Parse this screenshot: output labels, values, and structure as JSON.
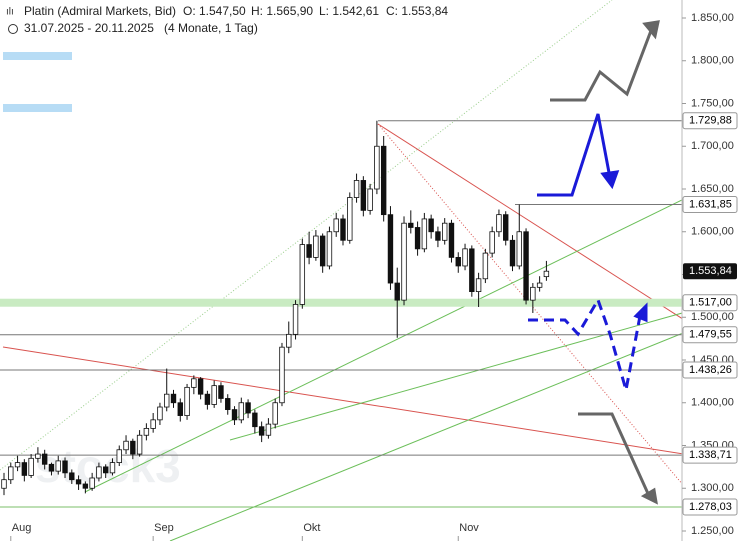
{
  "chart_data": {
    "type": "candlestick",
    "title": "Platin (Admiral Markets, Bid)",
    "header_values": [
      "O: 1.547,50",
      "H: 1.565,90",
      "L: 1.542,61",
      "C: 1.553,84"
    ],
    "period": "31.07.2025 - 20.11.2025",
    "period_note": "(4 Monate, 1 Tag)",
    "watermark": "stock3",
    "categories": [
      null,
      "Aug",
      null,
      null,
      null,
      null,
      null,
      null,
      null,
      null,
      null,
      null,
      null,
      null,
      null,
      null,
      null,
      null,
      null,
      null,
      null,
      null,
      "Sep",
      null,
      null,
      null,
      null,
      null,
      null,
      null,
      null,
      null,
      null,
      null,
      null,
      null,
      null,
      null,
      null,
      null,
      null,
      null,
      null,
      null,
      "Okt",
      null,
      null,
      null,
      null,
      null,
      null,
      null,
      null,
      null,
      null,
      null,
      null,
      null,
      null,
      null,
      null,
      null,
      null,
      null,
      null,
      null,
      null,
      "Nov",
      null,
      null,
      null,
      null,
      null,
      null,
      null,
      null,
      null,
      null,
      null,
      null,
      null
    ],
    "open": [
      1300,
      1310,
      1325,
      1330,
      1315,
      1335,
      1340,
      1328,
      1320,
      1332,
      1318,
      1310,
      1305,
      1300,
      1312,
      1325,
      1318,
      1330,
      1345,
      1355,
      1340,
      1362,
      1370,
      1380,
      1395,
      1410,
      1400,
      1385,
      1418,
      1428,
      1410,
      1398,
      1420,
      1405,
      1392,
      1380,
      1400,
      1388,
      1372,
      1362,
      1375,
      1400,
      1465,
      1480,
      1515,
      1585,
      1570,
      1595,
      1560,
      1600,
      1615,
      1590,
      1640,
      1660,
      1625,
      1650,
      1700,
      1620,
      1540,
      1520,
      1610,
      1605,
      1580,
      1615,
      1600,
      1590,
      1610,
      1570,
      1560,
      1580,
      1530,
      1545,
      1575,
      1600,
      1620,
      1590,
      1560,
      1600,
      1520,
      1535,
      1547.5
    ],
    "high": [
      1318,
      1330,
      1338,
      1334,
      1340,
      1348,
      1345,
      1330,
      1338,
      1336,
      1322,
      1315,
      1308,
      1318,
      1330,
      1328,
      1335,
      1350,
      1362,
      1358,
      1368,
      1376,
      1388,
      1400,
      1440,
      1415,
      1405,
      1422,
      1432,
      1430,
      1414,
      1426,
      1424,
      1410,
      1396,
      1406,
      1404,
      1392,
      1378,
      1382,
      1405,
      1470,
      1495,
      1520,
      1592,
      1600,
      1602,
      1598,
      1606,
      1622,
      1620,
      1646,
      1668,
      1665,
      1656,
      1729.88,
      1712,
      1630,
      1558,
      1618,
      1625,
      1612,
      1622,
      1620,
      1606,
      1616,
      1614,
      1576,
      1586,
      1584,
      1552,
      1580,
      1606,
      1626,
      1624,
      1596,
      1631.85,
      1604,
      1540,
      1548,
      1565.9
    ],
    "low": [
      1292,
      1305,
      1320,
      1308,
      1312,
      1330,
      1322,
      1315,
      1316,
      1312,
      1305,
      1298,
      1294,
      1297,
      1308,
      1312,
      1315,
      1326,
      1340,
      1334,
      1337,
      1356,
      1365,
      1374,
      1390,
      1394,
      1378,
      1380,
      1410,
      1404,
      1392,
      1394,
      1400,
      1386,
      1374,
      1376,
      1382,
      1364,
      1354,
      1358,
      1370,
      1396,
      1458,
      1474,
      1510,
      1562,
      1566,
      1552,
      1556,
      1594,
      1584,
      1586,
      1634,
      1618,
      1620,
      1644,
      1612,
      1532,
      1476,
      1514,
      1598,
      1572,
      1576,
      1592,
      1582,
      1585,
      1564,
      1552,
      1555,
      1524,
      1512,
      1540,
      1570,
      1594,
      1584,
      1554,
      1556,
      1515,
      1505,
      1530,
      1542.61
    ],
    "close": [
      1310,
      1325,
      1330,
      1315,
      1335,
      1340,
      1328,
      1320,
      1332,
      1318,
      1310,
      1305,
      1300,
      1312,
      1325,
      1318,
      1330,
      1345,
      1355,
      1340,
      1362,
      1370,
      1380,
      1395,
      1410,
      1400,
      1385,
      1418,
      1428,
      1410,
      1398,
      1420,
      1405,
      1392,
      1380,
      1400,
      1388,
      1372,
      1362,
      1375,
      1400,
      1465,
      1480,
      1515,
      1585,
      1570,
      1595,
      1560,
      1600,
      1615,
      1590,
      1640,
      1660,
      1625,
      1650,
      1700,
      1620,
      1540,
      1520,
      1610,
      1605,
      1580,
      1615,
      1600,
      1590,
      1610,
      1570,
      1560,
      1580,
      1530,
      1545,
      1575,
      1600,
      1620,
      1590,
      1560,
      1600,
      1520,
      1535,
      1540,
      1553.84
    ],
    "ylim": [
      1250,
      1850
    ],
    "yticks": [
      {
        "value": 1250,
        "label": "1.250,00"
      },
      {
        "value": 1300,
        "label": "1.300,00"
      },
      {
        "value": 1350,
        "label": "1.350,00"
      },
      {
        "value": 1400,
        "label": "1.400,00"
      },
      {
        "value": 1450,
        "label": "1.450,00"
      },
      {
        "value": 1500,
        "label": "1.500,00"
      },
      {
        "value": 1550,
        "label": "1.550,00"
      },
      {
        "value": 1600,
        "label": "1.600,00"
      },
      {
        "value": 1650,
        "label": "1.650,00"
      },
      {
        "value": 1700,
        "label": "1.700,00"
      },
      {
        "value": 1750,
        "label": "1.750,00"
      },
      {
        "value": 1800,
        "label": "1.800,00"
      },
      {
        "value": 1850,
        "label": "1.850,00"
      }
    ],
    "levels": [
      {
        "value": 1729.88,
        "label": "1.729,88"
      },
      {
        "value": 1631.85,
        "label": "1.631,85"
      },
      {
        "value": 1517,
        "label": "1.517,00"
      },
      {
        "value": 1479.55,
        "label": "1.479,55"
      },
      {
        "value": 1438.26,
        "label": "1.438,26"
      },
      {
        "value": 1338.71,
        "label": "1.338,71"
      },
      {
        "value": 1278.03,
        "label": "1.278,03"
      }
    ],
    "last_price": {
      "value": 1553.84,
      "label": "1.553,84"
    },
    "up_color": "#ffffff",
    "down_color": "#111111"
  }
}
